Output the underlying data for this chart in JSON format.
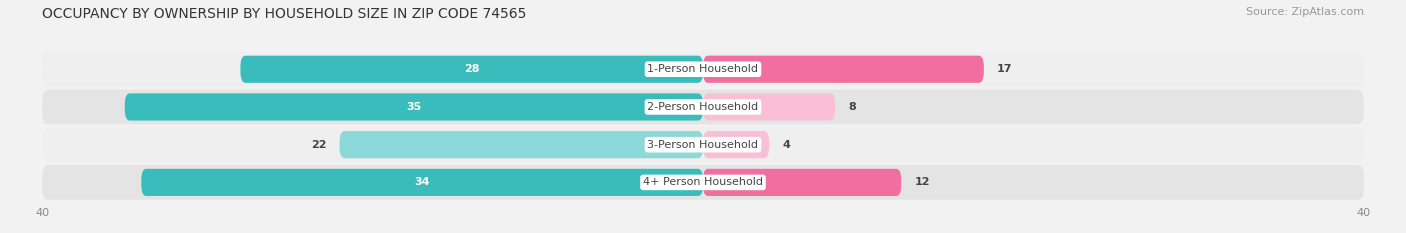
{
  "title": "OCCUPANCY BY OWNERSHIP BY HOUSEHOLD SIZE IN ZIP CODE 74565",
  "source": "Source: ZipAtlas.com",
  "categories": [
    "1-Person Household",
    "2-Person Household",
    "3-Person Household",
    "4+ Person Household"
  ],
  "owner_values": [
    28,
    35,
    22,
    34
  ],
  "renter_values": [
    17,
    8,
    4,
    12
  ],
  "owner_color": "#3bbcbc",
  "owner_color_light": "#8dd8d8",
  "renter_color": "#f06fa0",
  "renter_color_light": "#f9c0d5",
  "xlim": 40,
  "bg_color": "#f2f2f2",
  "row_bg_color_dark": "#e4e4e4",
  "row_bg_color_light": "#efefef",
  "title_fontsize": 10,
  "source_fontsize": 8,
  "cat_fontsize": 8,
  "tick_fontsize": 8,
  "value_fontsize": 8,
  "tick_color": "#888888",
  "center_label_bg": "#ffffff",
  "dark_text": "#444444",
  "white_text": "#ffffff"
}
